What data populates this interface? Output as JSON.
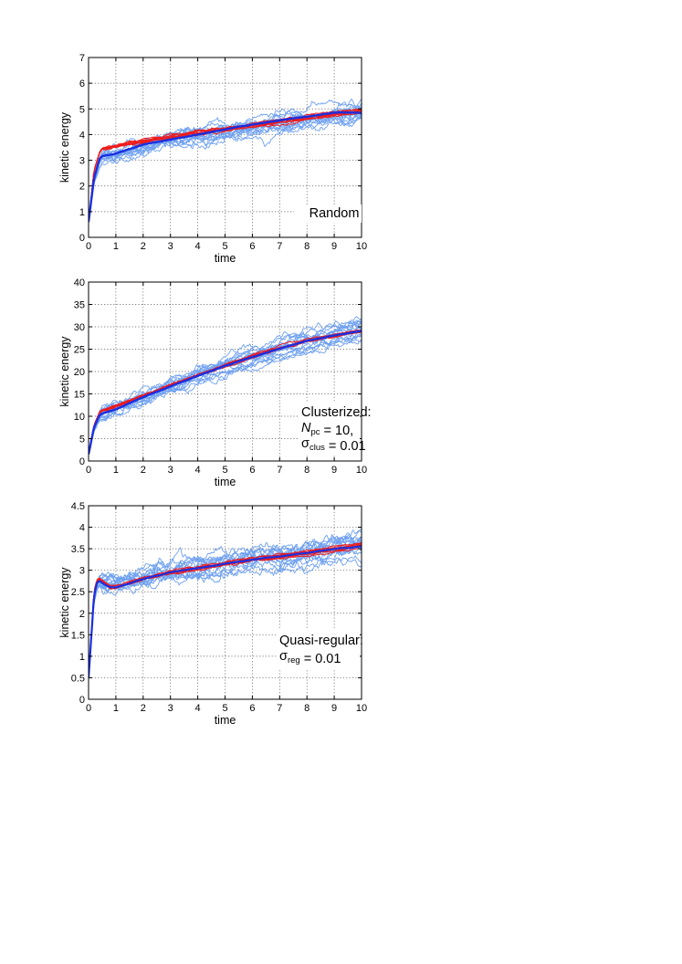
{
  "chart_data": [
    {
      "type": "line",
      "xlabel": "time",
      "ylabel": "kinetic  energy",
      "xlim": [
        0,
        10
      ],
      "ylim": [
        0,
        7
      ],
      "xticks": [
        0,
        1,
        2,
        3,
        4,
        5,
        6,
        7,
        8,
        9,
        10
      ],
      "yticks": [
        0,
        1,
        2,
        3,
        4,
        5,
        6,
        7
      ],
      "grid": true,
      "annotation": {
        "lines": [
          {
            "parts": [
              {
                "t": "Random",
                "style": "normal"
              }
            ]
          }
        ]
      },
      "series": [
        {
          "color": "#6ea0f0",
          "width": 0.9,
          "count": 16,
          "role": "light-blue realizations",
          "x": [
            0,
            0.2,
            0.4,
            0.5,
            1,
            2,
            3,
            4,
            5,
            6,
            7,
            8,
            9,
            10
          ],
          "y": [
            0.6,
            2.2,
            3.0,
            3.2,
            3.25,
            3.6,
            3.85,
            4.0,
            4.15,
            4.35,
            4.5,
            4.65,
            4.85,
            5.0
          ],
          "spread": 0.55
        },
        {
          "color": "#ee1c1c",
          "width": 1.0,
          "count": 10,
          "role": "red realizations",
          "x": [
            0,
            0.2,
            0.4,
            0.5,
            1,
            2,
            3,
            4,
            5,
            6,
            7,
            8,
            9,
            10
          ],
          "y": [
            0.6,
            2.6,
            3.3,
            3.45,
            3.55,
            3.75,
            3.9,
            4.05,
            4.2,
            4.35,
            4.5,
            4.65,
            4.8,
            4.95
          ],
          "spread": 0.16
        },
        {
          "color": "#1a2fe0",
          "width": 2.4,
          "count": 1,
          "role": "blue mean",
          "x": [
            0,
            0.2,
            0.4,
            0.5,
            1,
            2,
            3,
            4,
            5,
            6,
            7,
            8,
            9,
            10
          ],
          "y": [
            0.6,
            2.3,
            3.05,
            3.15,
            3.25,
            3.6,
            3.8,
            4.0,
            4.2,
            4.4,
            4.55,
            4.7,
            4.85,
            4.85
          ],
          "spread": 0.03
        }
      ]
    },
    {
      "type": "line",
      "xlabel": "time",
      "ylabel": "kinetic  energy",
      "xlim": [
        0,
        10
      ],
      "ylim": [
        0,
        40
      ],
      "xticks": [
        0,
        1,
        2,
        3,
        4,
        5,
        6,
        7,
        8,
        9,
        10
      ],
      "yticks": [
        0,
        5,
        10,
        15,
        20,
        25,
        30,
        35,
        40
      ],
      "grid": true,
      "annotation": {
        "lines": [
          {
            "parts": [
              {
                "t": "Clusterized:",
                "style": "normal"
              }
            ]
          },
          {
            "parts": [
              {
                "t": "N",
                "style": "italic"
              },
              {
                "t": "pc",
                "style": "sub"
              },
              {
                "t": " = 10,",
                "style": "normal"
              }
            ]
          },
          {
            "parts": [
              {
                "t": "σ",
                "style": "normal"
              },
              {
                "t": "clus",
                "style": "sub"
              },
              {
                "t": " = 0.01",
                "style": "normal"
              }
            ]
          }
        ]
      },
      "series": [
        {
          "color": "#6ea0f0",
          "width": 0.9,
          "count": 16,
          "role": "light-blue realizations",
          "x": [
            0,
            0.2,
            0.4,
            0.5,
            1,
            2,
            3,
            4,
            5,
            6,
            7,
            8,
            9,
            10
          ],
          "y": [
            1.5,
            7,
            10,
            10.5,
            11.5,
            14,
            16.5,
            19,
            21,
            23,
            25,
            26.5,
            28,
            29.5
          ],
          "spread": 2.8
        },
        {
          "color": "#ee1c1c",
          "width": 1.0,
          "count": 10,
          "role": "red realizations",
          "x": [
            0,
            0.2,
            0.4,
            0.5,
            1,
            2,
            3,
            4,
            5,
            6,
            7,
            8,
            9,
            10
          ],
          "y": [
            1.5,
            8,
            10.8,
            11.2,
            12.3,
            14.5,
            17,
            19.2,
            21.3,
            23.3,
            25.2,
            26.8,
            28,
            29
          ],
          "spread": 0.6
        },
        {
          "color": "#1a2fe0",
          "width": 2.4,
          "count": 1,
          "role": "blue mean",
          "x": [
            0,
            0.2,
            0.4,
            0.5,
            1,
            2,
            3,
            4,
            5,
            6,
            7,
            8,
            9,
            10
          ],
          "y": [
            1.5,
            7.5,
            10.2,
            10.6,
            11.6,
            14.2,
            16.7,
            19,
            21.2,
            23.2,
            25.1,
            26.8,
            28,
            29
          ],
          "spread": 0.15
        }
      ]
    },
    {
      "type": "line",
      "xlabel": "time",
      "ylabel": "kinetic  energy",
      "xlim": [
        0,
        10
      ],
      "ylim": [
        0,
        4.5
      ],
      "xticks": [
        0,
        1,
        2,
        3,
        4,
        5,
        6,
        7,
        8,
        9,
        10
      ],
      "yticks": [
        0,
        0.5,
        1,
        1.5,
        2,
        2.5,
        3,
        3.5,
        4,
        4.5
      ],
      "grid": true,
      "annotation": {
        "lines": [
          {
            "parts": [
              {
                "t": "Quasi-regular:",
                "style": "normal"
              }
            ]
          },
          {
            "parts": [
              {
                "t": "σ",
                "style": "normal"
              },
              {
                "t": "reg",
                "style": "sub"
              },
              {
                "t": " = 0.01",
                "style": "normal"
              }
            ]
          }
        ]
      },
      "series": [
        {
          "color": "#6ea0f0",
          "width": 0.9,
          "count": 16,
          "role": "light-blue realizations",
          "x": [
            0,
            0.2,
            0.3,
            0.4,
            0.6,
            0.8,
            1,
            2,
            3,
            4,
            5,
            6,
            7,
            8,
            9,
            10
          ],
          "y": [
            0.5,
            2.3,
            2.6,
            2.7,
            2.65,
            2.7,
            2.65,
            2.8,
            2.95,
            3.05,
            3.15,
            3.25,
            3.3,
            3.4,
            3.5,
            3.6
          ],
          "spread": 0.4
        },
        {
          "color": "#ee1c1c",
          "width": 1.0,
          "count": 10,
          "role": "red realizations",
          "x": [
            0,
            0.2,
            0.3,
            0.4,
            0.6,
            0.8,
            1,
            2,
            3,
            4,
            5,
            6,
            7,
            8,
            9,
            10
          ],
          "y": [
            0.5,
            2.5,
            2.75,
            2.8,
            2.7,
            2.6,
            2.6,
            2.8,
            2.95,
            3.05,
            3.15,
            3.25,
            3.32,
            3.4,
            3.5,
            3.58
          ],
          "spread": 0.08
        },
        {
          "color": "#1a2fe0",
          "width": 2.2,
          "count": 1,
          "role": "blue mean",
          "x": [
            0,
            0.2,
            0.3,
            0.4,
            0.6,
            0.8,
            1,
            2,
            3,
            4,
            5,
            6,
            7,
            8,
            9,
            10
          ],
          "y": [
            0.5,
            2.4,
            2.7,
            2.75,
            2.65,
            2.6,
            2.6,
            2.8,
            2.95,
            3.05,
            3.15,
            3.25,
            3.32,
            3.4,
            3.5,
            3.55
          ],
          "spread": 0.02
        }
      ]
    }
  ]
}
